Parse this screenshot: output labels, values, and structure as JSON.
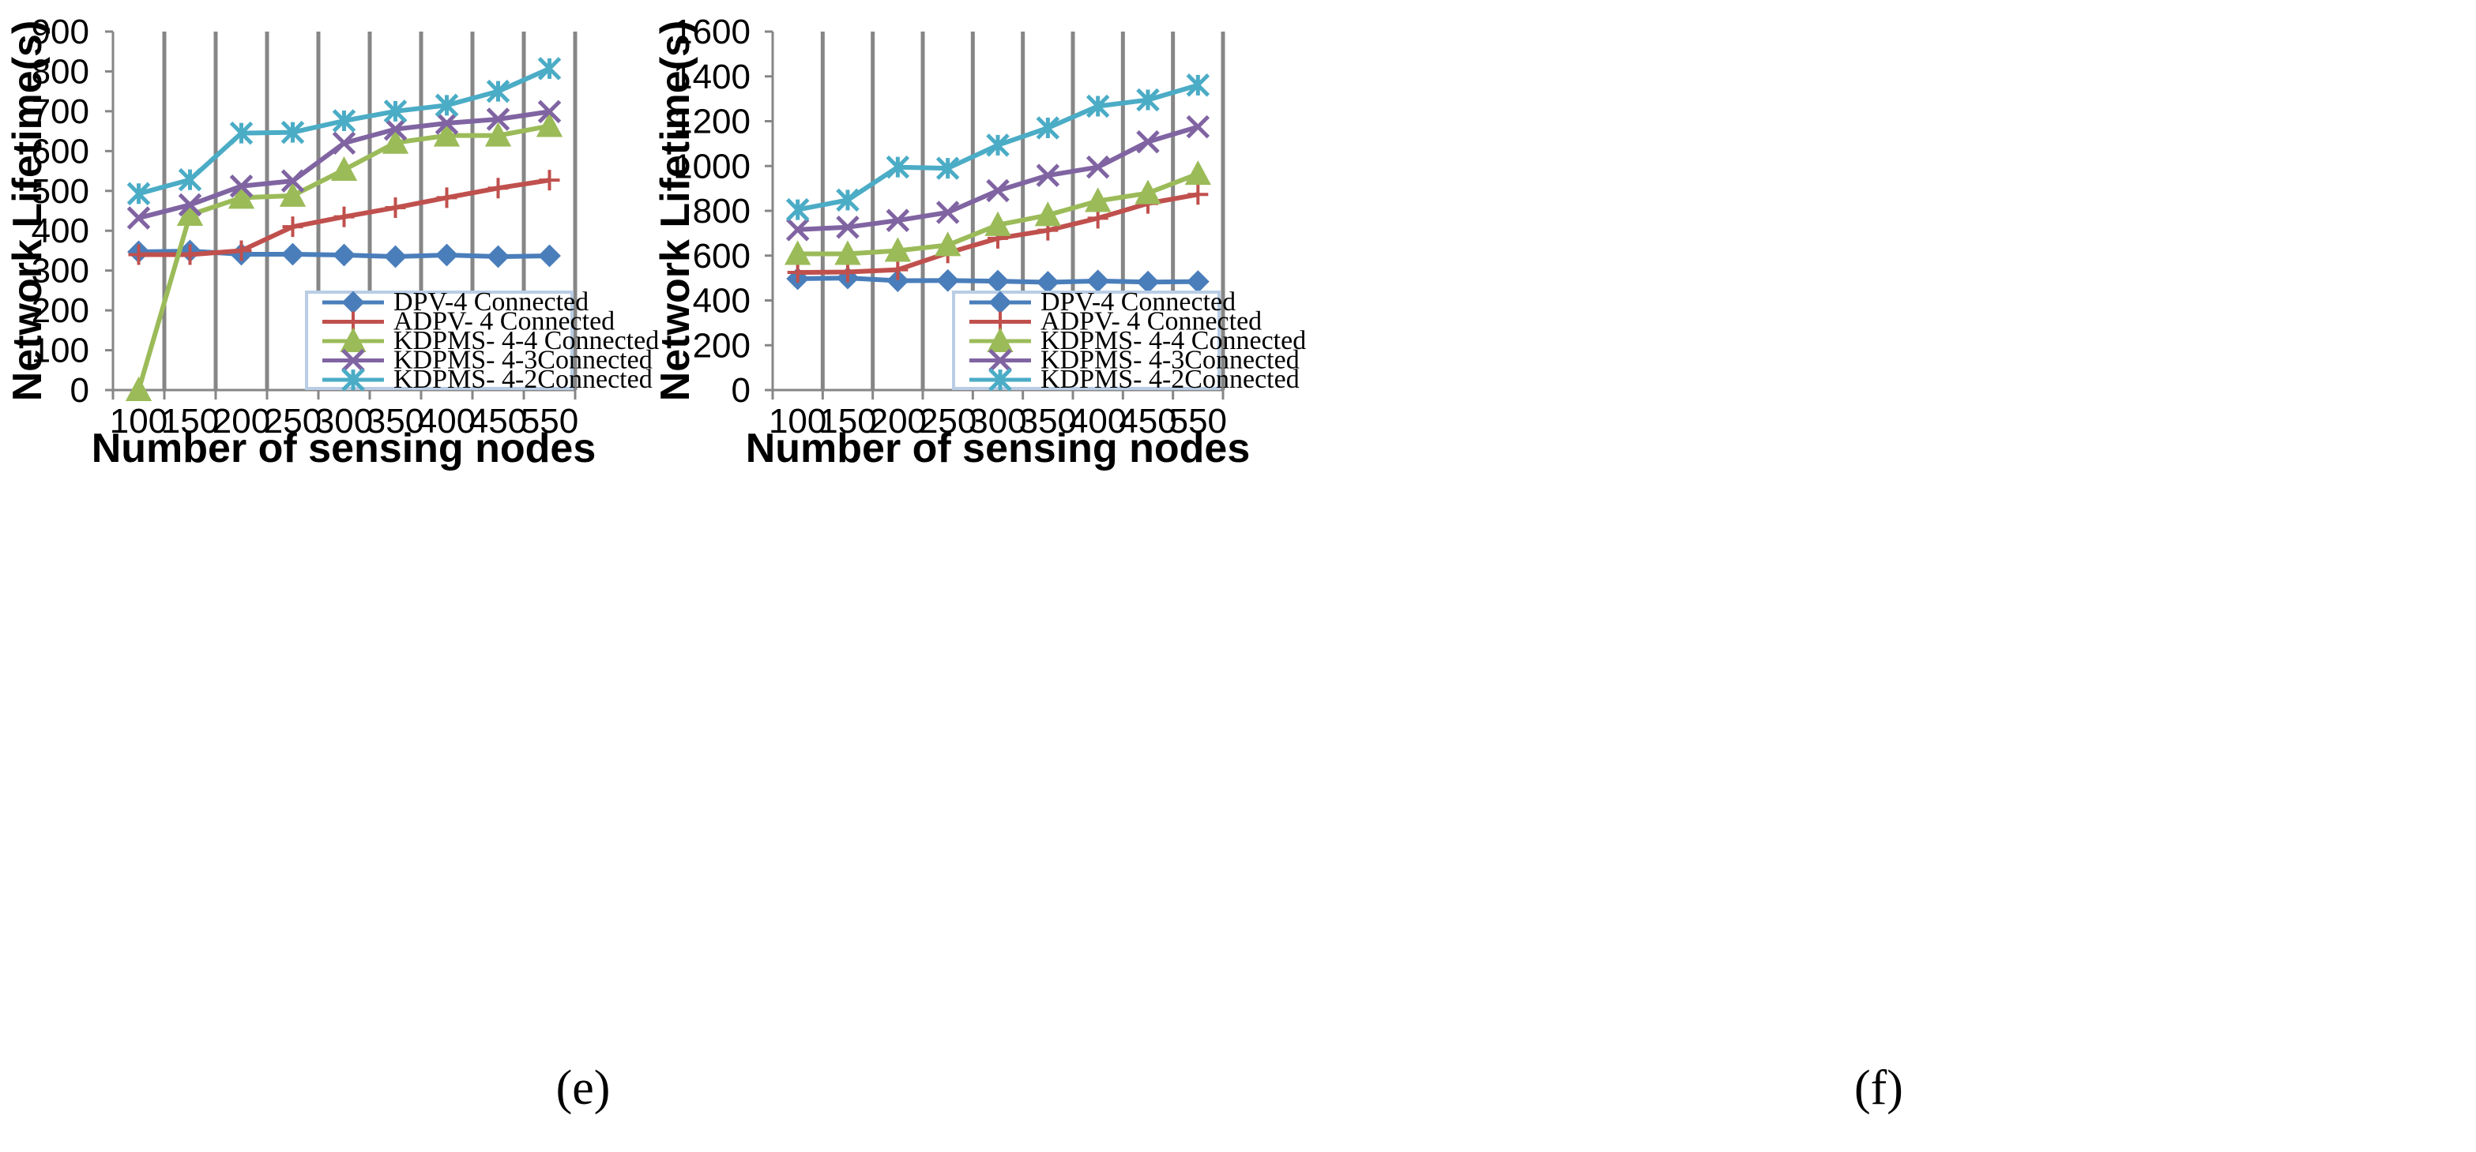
{
  "chart_data": [
    {
      "type": "line",
      "panel": "(e)",
      "title": "",
      "xlabel": "Number of sensing nodes",
      "ylabel": "Network Lifetime(s)",
      "categories": [
        "100",
        "150",
        "200",
        "250",
        "300",
        "350",
        "400",
        "450",
        "550"
      ],
      "ylim": [
        0,
        900
      ],
      "yticks": [
        0,
        100,
        200,
        300,
        400,
        500,
        600,
        700,
        800,
        900
      ],
      "grid": "vertical",
      "legend_position": "bottom-right",
      "series": [
        {
          "name": "DPV-4 Connected",
          "color": "#4a7ebb",
          "marker": "diamond",
          "values": [
            347,
            349,
            341,
            341,
            339,
            335,
            339,
            335,
            337
          ]
        },
        {
          "name": "ADPV- 4 Connected",
          "color": "#c0504d",
          "marker": "plus",
          "values": [
            340,
            340,
            350,
            410,
            435,
            458,
            483,
            507,
            527
          ]
        },
        {
          "name": "KDPMS- 4-4 Connected",
          "color": "#9bbb59",
          "marker": "triangle",
          "values": [
            0,
            440,
            483,
            488,
            553,
            621,
            639,
            639,
            663
          ]
        },
        {
          "name": "KDPMS- 4-3Connected",
          "color": "#8064a2",
          "marker": "x",
          "values": [
            432,
            465,
            512,
            525,
            620,
            655,
            670,
            680,
            699
          ]
        },
        {
          "name": "KDPMS- 4-2Connected",
          "color": "#4bacc6",
          "marker": "star",
          "values": [
            493,
            528,
            645,
            647,
            676,
            700,
            715,
            750,
            807
          ]
        }
      ]
    },
    {
      "type": "line",
      "panel": "(f)",
      "title": "",
      "xlabel": "Number of sensing nodes",
      "ylabel": "Network Lifetime(s)",
      "categories": [
        "100",
        "150",
        "200",
        "250",
        "300",
        "350",
        "400",
        "450",
        "550"
      ],
      "ylim": [
        0,
        1600
      ],
      "yticks": [
        0,
        200,
        400,
        600,
        800,
        1000,
        1200,
        1400,
        1600
      ],
      "grid": "vertical",
      "legend_position": "bottom-right",
      "series": [
        {
          "name": "DPV-4 Connected",
          "color": "#4a7ebb",
          "marker": "diamond",
          "values": [
            497,
            500,
            488,
            489,
            486,
            481,
            487,
            482,
            484
          ]
        },
        {
          "name": "ADPV- 4 Connected",
          "color": "#c0504d",
          "marker": "plus",
          "values": [
            525,
            527,
            537,
            612,
            677,
            713,
            767,
            833,
            873
          ]
        },
        {
          "name": "KDPMS- 4-4 Connected",
          "color": "#9bbb59",
          "marker": "triangle",
          "values": [
            608,
            608,
            622,
            647,
            737,
            781,
            844,
            879,
            965
          ]
        },
        {
          "name": "KDPMS- 4-3Connected",
          "color": "#8064a2",
          "marker": "x",
          "values": [
            716,
            727,
            757,
            793,
            890,
            958,
            995,
            1108,
            1175
          ]
        },
        {
          "name": "KDPMS- 4-2Connected",
          "color": "#4bacc6",
          "marker": "star",
          "values": [
            805,
            848,
            995,
            990,
            1093,
            1170,
            1267,
            1295,
            1361
          ]
        }
      ]
    }
  ]
}
